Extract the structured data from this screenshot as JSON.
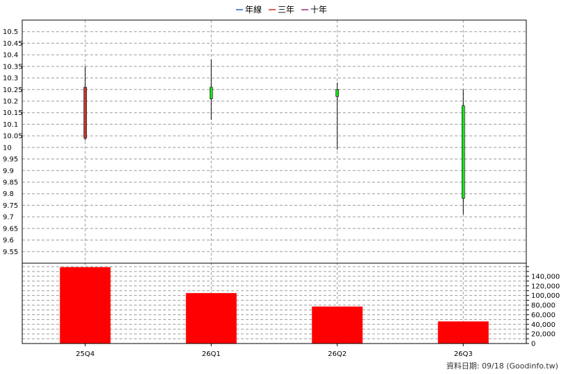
{
  "chart_data": {
    "type": "candlestick",
    "legend": [
      {
        "label": "年線",
        "color": "#1f5fd6"
      },
      {
        "label": "三年",
        "color": "#e02020"
      },
      {
        "label": "十年",
        "color": "#9a2a7a"
      }
    ],
    "categories": [
      "25Q4",
      "26Q1",
      "26Q2",
      "26Q3"
    ],
    "price": {
      "ylim": [
        9.5,
        10.55
      ],
      "tick_labels": [
        "9.55",
        "9.6",
        "9.65",
        "9.7",
        "9.75",
        "9.8",
        "9.85",
        "9.9",
        "9.95",
        "10",
        "10.05",
        "10.1",
        "10.15",
        "10.2",
        "10.25",
        "10.3",
        "10.35",
        "10.4",
        "10.45",
        "10.5"
      ],
      "candles": [
        {
          "open": 10.04,
          "high": 10.35,
          "low": 10.03,
          "close": 10.26,
          "color": "#c0392b"
        },
        {
          "open": 10.26,
          "high": 10.38,
          "low": 10.12,
          "close": 10.21,
          "color": "#22dd22"
        },
        {
          "open": 10.25,
          "high": 10.28,
          "low": 9.99,
          "close": 10.22,
          "color": "#22dd22"
        },
        {
          "open": 10.18,
          "high": 10.25,
          "low": 9.71,
          "close": 9.78,
          "color": "#22dd22"
        }
      ]
    },
    "volume": {
      "values": [
        159000,
        105000,
        77000,
        46000
      ],
      "ylim": [
        0,
        160000
      ],
      "tick_labels": [
        "0",
        "20,000",
        "40,000",
        "60,000",
        "80,000",
        "100,000",
        "120,000",
        "140,000"
      ],
      "color": "#ff0000"
    },
    "grid": true
  },
  "footer": {
    "text": "資料日期: 09/18  (Goodinfo.tw)"
  }
}
